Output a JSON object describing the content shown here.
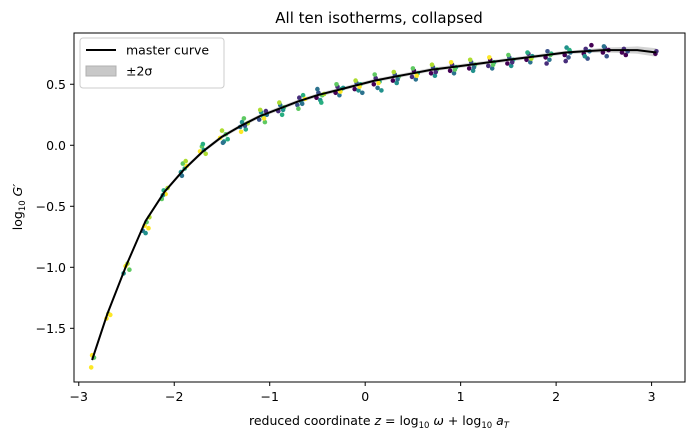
{
  "chart_data": {
    "type": "scatter",
    "title": "All ten isotherms, collapsed",
    "xlabel": "reduced coordinate z = log₁₀ ω + log₁₀ a",
    "xlabel_parts": {
      "lead": "reduced coordinate ",
      "z": "z",
      "eq": " = log",
      "ten1": "10",
      "omega": " ω",
      "plus": " + log",
      "ten2": "10",
      "a": " a",
      "T": "T"
    },
    "ylabel": "log₁₀ G′",
    "ylabel_parts": {
      "log": "log",
      "ten": "10",
      "G": " G′"
    },
    "xlim": [
      -3.05,
      3.35
    ],
    "ylim": [
      -1.94,
      0.92
    ],
    "xticks": [
      -3,
      -2,
      -1,
      0,
      1,
      2,
      3
    ],
    "xtick_labels": [
      "−3",
      "−2",
      "−1",
      "0",
      "1",
      "2",
      "3"
    ],
    "yticks": [
      -1.5,
      -1.0,
      -0.5,
      0.0,
      0.5
    ],
    "ytick_labels": [
      "−1.5",
      "−1.0",
      "−0.5",
      "0.0",
      "0.5"
    ],
    "legend": {
      "position": "top-left",
      "entries": [
        {
          "label": "master curve",
          "kind": "line"
        },
        {
          "label": "±2σ",
          "kind": "patch"
        }
      ]
    },
    "grid": false,
    "colors": {
      "master_curve": "#000000",
      "band": "#b0b0b0",
      "isotherms": [
        "#440154",
        "#472d7b",
        "#3b528b",
        "#2c728e",
        "#21918c",
        "#28ae80",
        "#5ec962",
        "#addc30",
        "#fde725",
        "#fde725"
      ]
    },
    "master_curve": {
      "x": [
        -2.86,
        -2.7,
        -2.5,
        -2.3,
        -2.1,
        -1.9,
        -1.7,
        -1.5,
        -1.3,
        -1.1,
        -0.9,
        -0.7,
        -0.5,
        -0.3,
        -0.1,
        0.1,
        0.3,
        0.5,
        0.7,
        0.9,
        1.1,
        1.3,
        1.5,
        1.7,
        1.9,
        2.1,
        2.3,
        2.5,
        2.7,
        2.85,
        3.05
      ],
      "y": [
        -1.76,
        -1.38,
        -0.98,
        -0.62,
        -0.38,
        -0.2,
        -0.05,
        0.07,
        0.16,
        0.24,
        0.3,
        0.36,
        0.41,
        0.45,
        0.49,
        0.53,
        0.56,
        0.59,
        0.62,
        0.64,
        0.66,
        0.68,
        0.7,
        0.72,
        0.74,
        0.76,
        0.77,
        0.78,
        0.78,
        0.78,
        0.76
      ],
      "sigma2": [
        0.015,
        0.015,
        0.015,
        0.015,
        0.015,
        0.015,
        0.015,
        0.015,
        0.015,
        0.015,
        0.015,
        0.015,
        0.015,
        0.015,
        0.015,
        0.015,
        0.015,
        0.015,
        0.015,
        0.015,
        0.015,
        0.015,
        0.015,
        0.015,
        0.015,
        0.015,
        0.015,
        0.02,
        0.025,
        0.03,
        0.035
      ]
    },
    "isotherm_points": [
      {
        "x": -2.87,
        "y": -1.82,
        "c": 8
      },
      {
        "x": -2.86,
        "y": -1.72,
        "c": 8
      },
      {
        "x": -2.84,
        "y": -1.74,
        "c": 6
      },
      {
        "x": -2.71,
        "y": -1.42,
        "c": 8
      },
      {
        "x": -2.69,
        "y": -1.38,
        "c": 7
      },
      {
        "x": -2.67,
        "y": -1.39,
        "c": 8
      },
      {
        "x": -2.53,
        "y": -1.05,
        "c": 4
      },
      {
        "x": -2.51,
        "y": -0.99,
        "c": 8
      },
      {
        "x": -2.49,
        "y": -0.97,
        "c": 7
      },
      {
        "x": -2.47,
        "y": -1.02,
        "c": 6
      },
      {
        "x": -2.33,
        "y": -0.7,
        "c": 3
      },
      {
        "x": -2.31,
        "y": -0.66,
        "c": 8
      },
      {
        "x": -2.29,
        "y": -0.63,
        "c": 6
      },
      {
        "x": -2.27,
        "y": -0.68,
        "c": 8
      },
      {
        "x": -2.26,
        "y": -0.59,
        "c": 7
      },
      {
        "x": -2.3,
        "y": -0.72,
        "c": 4
      },
      {
        "x": -2.13,
        "y": -0.44,
        "c": 6
      },
      {
        "x": -2.11,
        "y": -0.37,
        "c": 5
      },
      {
        "x": -2.09,
        "y": -0.4,
        "c": 8
      },
      {
        "x": -2.07,
        "y": -0.35,
        "c": 7
      },
      {
        "x": -2.12,
        "y": -0.41,
        "c": 4
      },
      {
        "x": -1.93,
        "y": -0.22,
        "c": 4
      },
      {
        "x": -1.91,
        "y": -0.15,
        "c": 6
      },
      {
        "x": -1.89,
        "y": -0.19,
        "c": 5
      },
      {
        "x": -1.87,
        "y": -0.17,
        "c": 8
      },
      {
        "x": -1.92,
        "y": -0.25,
        "c": 3
      },
      {
        "x": -1.88,
        "y": -0.13,
        "c": 7
      },
      {
        "x": -1.73,
        "y": -0.05,
        "c": 8
      },
      {
        "x": -1.71,
        "y": -0.01,
        "c": 6
      },
      {
        "x": -1.69,
        "y": -0.04,
        "c": 4
      },
      {
        "x": -1.67,
        "y": -0.07,
        "c": 7
      },
      {
        "x": -1.7,
        "y": 0.01,
        "c": 5
      },
      {
        "x": -1.52,
        "y": 0.06,
        "c": 8
      },
      {
        "x": -1.5,
        "y": 0.12,
        "c": 7
      },
      {
        "x": -1.48,
        "y": 0.03,
        "c": 4
      },
      {
        "x": -1.46,
        "y": 0.09,
        "c": 6
      },
      {
        "x": -1.44,
        "y": 0.05,
        "c": 5
      },
      {
        "x": -1.49,
        "y": 0.02,
        "c": 3
      },
      {
        "x": -1.31,
        "y": 0.15,
        "c": 3
      },
      {
        "x": -1.29,
        "y": 0.19,
        "c": 4
      },
      {
        "x": -1.27,
        "y": 0.22,
        "c": 6
      },
      {
        "x": -1.25,
        "y": 0.13,
        "c": 5
      },
      {
        "x": -1.23,
        "y": 0.18,
        "c": 7
      },
      {
        "x": -1.3,
        "y": 0.11,
        "c": 8
      },
      {
        "x": -1.26,
        "y": 0.16,
        "c": 2
      },
      {
        "x": -1.11,
        "y": 0.21,
        "c": 2
      },
      {
        "x": -1.09,
        "y": 0.27,
        "c": 4
      },
      {
        "x": -1.07,
        "y": 0.24,
        "c": 5
      },
      {
        "x": -1.05,
        "y": 0.19,
        "c": 6
      },
      {
        "x": -1.03,
        "y": 0.25,
        "c": 3
      },
      {
        "x": -1.1,
        "y": 0.29,
        "c": 7
      },
      {
        "x": -1.06,
        "y": 0.22,
        "c": 8
      },
      {
        "x": -1.04,
        "y": 0.28,
        "c": 1
      },
      {
        "x": -0.91,
        "y": 0.28,
        "c": 1
      },
      {
        "x": -0.89,
        "y": 0.33,
        "c": 3
      },
      {
        "x": -0.87,
        "y": 0.25,
        "c": 5
      },
      {
        "x": -0.85,
        "y": 0.31,
        "c": 6
      },
      {
        "x": -0.9,
        "y": 0.35,
        "c": 7
      },
      {
        "x": -0.86,
        "y": 0.29,
        "c": 4
      },
      {
        "x": -0.71,
        "y": 0.33,
        "c": 2
      },
      {
        "x": -0.69,
        "y": 0.39,
        "c": 1
      },
      {
        "x": -0.67,
        "y": 0.36,
        "c": 4
      },
      {
        "x": -0.65,
        "y": 0.41,
        "c": 5
      },
      {
        "x": -0.7,
        "y": 0.3,
        "c": 6
      },
      {
        "x": -0.66,
        "y": 0.34,
        "c": 3
      },
      {
        "x": -0.63,
        "y": 0.38,
        "c": 8
      },
      {
        "x": -0.51,
        "y": 0.39,
        "c": 0
      },
      {
        "x": -0.49,
        "y": 0.43,
        "c": 2
      },
      {
        "x": -0.47,
        "y": 0.37,
        "c": 4
      },
      {
        "x": -0.45,
        "y": 0.41,
        "c": 6
      },
      {
        "x": -0.5,
        "y": 0.46,
        "c": 3
      },
      {
        "x": -0.46,
        "y": 0.35,
        "c": 5
      },
      {
        "x": -0.43,
        "y": 0.42,
        "c": 7
      },
      {
        "x": -0.31,
        "y": 0.43,
        "c": 0
      },
      {
        "x": -0.29,
        "y": 0.48,
        "c": 1
      },
      {
        "x": -0.27,
        "y": 0.41,
        "c": 3
      },
      {
        "x": -0.25,
        "y": 0.46,
        "c": 5
      },
      {
        "x": -0.3,
        "y": 0.5,
        "c": 6
      },
      {
        "x": -0.26,
        "y": 0.44,
        "c": 8
      },
      {
        "x": -0.23,
        "y": 0.47,
        "c": 4
      },
      {
        "x": -0.11,
        "y": 0.46,
        "c": 0
      },
      {
        "x": -0.09,
        "y": 0.51,
        "c": 2
      },
      {
        "x": -0.07,
        "y": 0.45,
        "c": 4
      },
      {
        "x": -0.05,
        "y": 0.5,
        "c": 5
      },
      {
        "x": -0.1,
        "y": 0.53,
        "c": 7
      },
      {
        "x": -0.06,
        "y": 0.48,
        "c": 8
      },
      {
        "x": -0.03,
        "y": 0.43,
        "c": 3
      },
      {
        "x": 0.09,
        "y": 0.5,
        "c": 0
      },
      {
        "x": 0.11,
        "y": 0.55,
        "c": 1
      },
      {
        "x": 0.13,
        "y": 0.47,
        "c": 3
      },
      {
        "x": 0.15,
        "y": 0.52,
        "c": 5
      },
      {
        "x": 0.1,
        "y": 0.58,
        "c": 6
      },
      {
        "x": 0.14,
        "y": 0.51,
        "c": 8
      },
      {
        "x": 0.17,
        "y": 0.45,
        "c": 4
      },
      {
        "x": 0.29,
        "y": 0.53,
        "c": 0
      },
      {
        "x": 0.31,
        "y": 0.58,
        "c": 2
      },
      {
        "x": 0.33,
        "y": 0.51,
        "c": 4
      },
      {
        "x": 0.35,
        "y": 0.56,
        "c": 6
      },
      {
        "x": 0.3,
        "y": 0.6,
        "c": 7
      },
      {
        "x": 0.34,
        "y": 0.54,
        "c": 3
      },
      {
        "x": 0.49,
        "y": 0.56,
        "c": 1
      },
      {
        "x": 0.51,
        "y": 0.61,
        "c": 0
      },
      {
        "x": 0.53,
        "y": 0.54,
        "c": 3
      },
      {
        "x": 0.55,
        "y": 0.59,
        "c": 5
      },
      {
        "x": 0.5,
        "y": 0.63,
        "c": 6
      },
      {
        "x": 0.54,
        "y": 0.57,
        "c": 8
      },
      {
        "x": 0.69,
        "y": 0.59,
        "c": 0
      },
      {
        "x": 0.71,
        "y": 0.64,
        "c": 2
      },
      {
        "x": 0.73,
        "y": 0.57,
        "c": 4
      },
      {
        "x": 0.75,
        "y": 0.62,
        "c": 6
      },
      {
        "x": 0.7,
        "y": 0.66,
        "c": 7
      },
      {
        "x": 0.74,
        "y": 0.6,
        "c": 1
      },
      {
        "x": 0.89,
        "y": 0.61,
        "c": 0
      },
      {
        "x": 0.91,
        "y": 0.66,
        "c": 1
      },
      {
        "x": 0.93,
        "y": 0.59,
        "c": 3
      },
      {
        "x": 0.95,
        "y": 0.64,
        "c": 5
      },
      {
        "x": 0.9,
        "y": 0.68,
        "c": 8
      },
      {
        "x": 0.94,
        "y": 0.62,
        "c": 6
      },
      {
        "x": 1.09,
        "y": 0.63,
        "c": 0
      },
      {
        "x": 1.11,
        "y": 0.68,
        "c": 2
      },
      {
        "x": 1.13,
        "y": 0.61,
        "c": 4
      },
      {
        "x": 1.15,
        "y": 0.66,
        "c": 6
      },
      {
        "x": 1.1,
        "y": 0.7,
        "c": 7
      },
      {
        "x": 1.14,
        "y": 0.64,
        "c": 3
      },
      {
        "x": 1.29,
        "y": 0.65,
        "c": 1
      },
      {
        "x": 1.31,
        "y": 0.7,
        "c": 0
      },
      {
        "x": 1.33,
        "y": 0.63,
        "c": 3
      },
      {
        "x": 1.35,
        "y": 0.68,
        "c": 5
      },
      {
        "x": 1.3,
        "y": 0.72,
        "c": 8
      },
      {
        "x": 1.34,
        "y": 0.66,
        "c": 6
      },
      {
        "x": 1.49,
        "y": 0.67,
        "c": 0
      },
      {
        "x": 1.51,
        "y": 0.72,
        "c": 2
      },
      {
        "x": 1.53,
        "y": 0.65,
        "c": 4
      },
      {
        "x": 1.55,
        "y": 0.7,
        "c": 5
      },
      {
        "x": 1.5,
        "y": 0.74,
        "c": 6
      },
      {
        "x": 1.54,
        "y": 0.68,
        "c": 1
      },
      {
        "x": 1.69,
        "y": 0.7,
        "c": 0
      },
      {
        "x": 1.71,
        "y": 0.75,
        "c": 1
      },
      {
        "x": 1.73,
        "y": 0.68,
        "c": 3
      },
      {
        "x": 1.75,
        "y": 0.73,
        "c": 4
      },
      {
        "x": 1.7,
        "y": 0.76,
        "c": 5
      },
      {
        "x": 1.74,
        "y": 0.71,
        "c": 7
      },
      {
        "x": 1.89,
        "y": 0.72,
        "c": 0
      },
      {
        "x": 1.91,
        "y": 0.77,
        "c": 2
      },
      {
        "x": 1.93,
        "y": 0.7,
        "c": 3
      },
      {
        "x": 1.95,
        "y": 0.75,
        "c": 5
      },
      {
        "x": 1.9,
        "y": 0.67,
        "c": 1
      },
      {
        "x": 1.94,
        "y": 0.74,
        "c": 6
      },
      {
        "x": 2.09,
        "y": 0.74,
        "c": 0
      },
      {
        "x": 2.11,
        "y": 0.8,
        "c": 4
      },
      {
        "x": 2.13,
        "y": 0.72,
        "c": 2
      },
      {
        "x": 2.15,
        "y": 0.76,
        "c": 3
      },
      {
        "x": 2.1,
        "y": 0.69,
        "c": 1
      },
      {
        "x": 2.14,
        "y": 0.78,
        "c": 5
      },
      {
        "x": 2.29,
        "y": 0.75,
        "c": 0
      },
      {
        "x": 2.31,
        "y": 0.79,
        "c": 1
      },
      {
        "x": 2.33,
        "y": 0.71,
        "c": 2
      },
      {
        "x": 2.35,
        "y": 0.77,
        "c": 3
      },
      {
        "x": 2.3,
        "y": 0.73,
        "c": 4
      },
      {
        "x": 2.37,
        "y": 0.82,
        "c": 0
      },
      {
        "x": 2.49,
        "y": 0.76,
        "c": 0
      },
      {
        "x": 2.51,
        "y": 0.8,
        "c": 1
      },
      {
        "x": 2.53,
        "y": 0.73,
        "c": 2
      },
      {
        "x": 2.55,
        "y": 0.78,
        "c": 0
      },
      {
        "x": 2.5,
        "y": 0.81,
        "c": 3
      },
      {
        "x": 2.69,
        "y": 0.76,
        "c": 0
      },
      {
        "x": 2.71,
        "y": 0.79,
        "c": 1
      },
      {
        "x": 2.73,
        "y": 0.74,
        "c": 0
      },
      {
        "x": 2.75,
        "y": 0.77,
        "c": 2
      },
      {
        "x": 3.04,
        "y": 0.75,
        "c": 0
      },
      {
        "x": 3.05,
        "y": 0.77,
        "c": 1
      }
    ]
  }
}
